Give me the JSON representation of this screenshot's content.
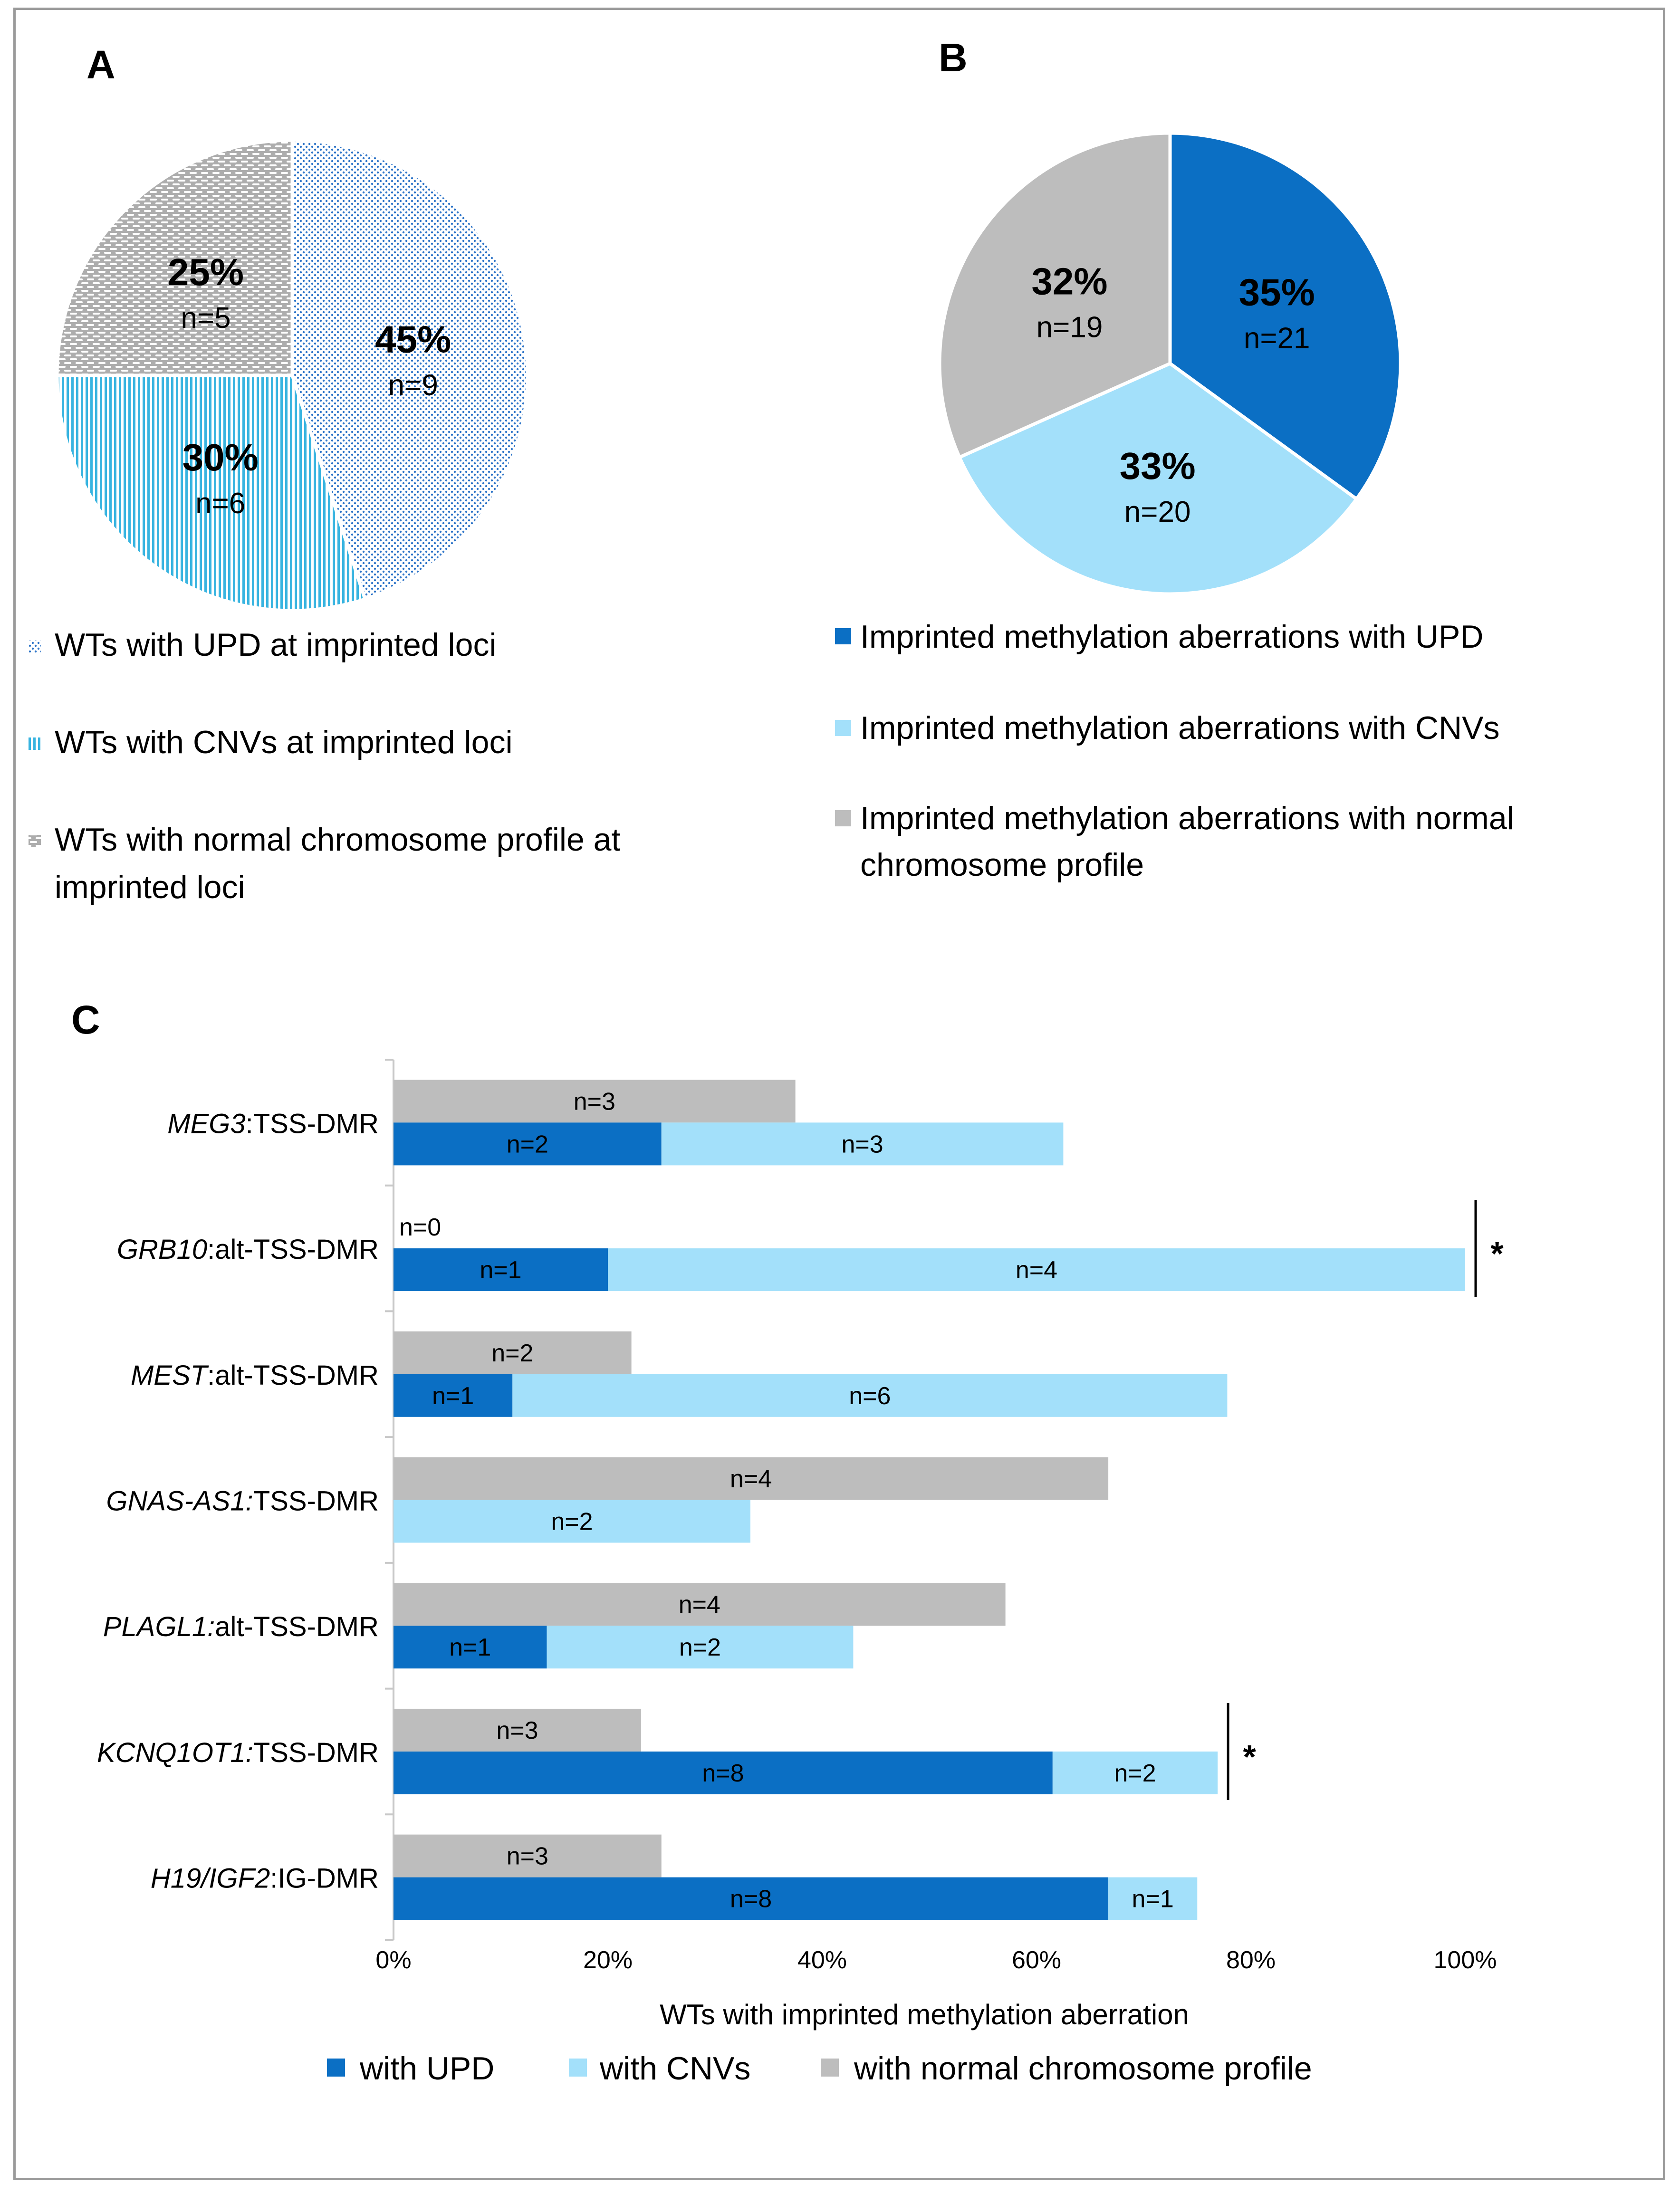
{
  "panels": {
    "a": "A",
    "b": "B",
    "c": "C"
  },
  "colors": {
    "upd": "#0B6FC4",
    "cnv": "#A3E0FA",
    "normal": "#BDBDBD",
    "pattern_upd": "#2B73C8",
    "pattern_cnv": "#38B4E0",
    "pattern_normal": "#ADADAD"
  },
  "chart_data": [
    {
      "type": "pie",
      "panel": "A",
      "slices": [
        {
          "label": "WTs with UPD at imprinted loci",
          "percent_label": "45%",
          "n_label": "n=9",
          "value": 9
        },
        {
          "label": "WTs with CNVs at imprinted loci",
          "percent_label": "30%",
          "n_label": "n=6",
          "value": 6
        },
        {
          "label": "WTs with normal chromosome profile at imprinted loci",
          "percent_label": "25%",
          "n_label": "n=5",
          "value": 5
        }
      ],
      "legend": [
        "WTs with UPD at imprinted loci",
        "WTs with CNVs at imprinted loci",
        "WTs with normal chromosome profile at",
        "imprinted loci"
      ],
      "legend_position": "bottom"
    },
    {
      "type": "pie",
      "panel": "B",
      "slices": [
        {
          "label": "Imprinted methylation aberrations with UPD",
          "percent_label": "35%",
          "n_label": "n=21",
          "value": 21
        },
        {
          "label": "Imprinted methylation aberrations with CNVs",
          "percent_label": "33%",
          "n_label": "n=20",
          "value": 20
        },
        {
          "label": "Imprinted methylation aberrations with normal chromosome profile",
          "percent_label": "32%",
          "n_label": "n=19",
          "value": 19
        }
      ],
      "legend": [
        "Imprinted methylation aberrations with UPD",
        "Imprinted methylation aberrations with CNVs",
        "Imprinted methylation aberrations with normal",
        "chromosome profile"
      ],
      "legend_position": "bottom"
    },
    {
      "type": "bar",
      "orientation": "horizontal",
      "panel": "C",
      "xlabel": "WTs with imprinted methylation aberration",
      "xlim": [
        0,
        100
      ],
      "ticks": [
        "0%",
        "20%",
        "40%",
        "60%",
        "80%",
        "100%"
      ],
      "legend": [
        "with UPD",
        "with CNVs",
        "with normal chromosome profile"
      ],
      "legend_position": "bottom",
      "categories": [
        {
          "gene": "MEG3",
          "suffix": ":TSS-DMR",
          "stacked": [
            {
              "s": "upd",
              "v": 25,
              "label": "n=2"
            },
            {
              "s": "cnv",
              "v": 37.5,
              "label": "n=3"
            }
          ],
          "normal": {
            "v": 37.5,
            "label": "n=3"
          },
          "sig": ""
        },
        {
          "gene": "GRB10",
          "suffix": ":alt-TSS-DMR",
          "stacked": [
            {
              "s": "upd",
              "v": 20,
              "label": "n=1"
            },
            {
              "s": "cnv",
              "v": 80,
              "label": "n=4"
            }
          ],
          "normal": {
            "v": 0,
            "label": "n=0"
          },
          "sig": "*"
        },
        {
          "gene": "MEST",
          "suffix": ":alt-TSS-DMR",
          "stacked": [
            {
              "s": "upd",
              "v": 11.1,
              "label": "n=1"
            },
            {
              "s": "cnv",
              "v": 66.7,
              "label": "n=6"
            }
          ],
          "normal": {
            "v": 22.2,
            "label": "n=2"
          },
          "sig": ""
        },
        {
          "gene": "GNAS-AS1:",
          "suffix": "TSS-DMR",
          "stacked": [
            {
              "s": "cnv",
              "v": 33.3,
              "label": "n=2"
            }
          ],
          "normal": {
            "v": 66.7,
            "label": "n=4"
          },
          "sig": ""
        },
        {
          "gene": "PLAGL1:",
          "suffix": "alt-TSS-DMR",
          "stacked": [
            {
              "s": "upd",
              "v": 14.3,
              "label": "n=1"
            },
            {
              "s": "cnv",
              "v": 28.6,
              "label": "n=2"
            }
          ],
          "normal": {
            "v": 57.1,
            "label": "n=4"
          },
          "sig": ""
        },
        {
          "gene": "KCNQ1OT1:",
          "suffix": "TSS-DMR",
          "stacked": [
            {
              "s": "upd",
              "v": 61.5,
              "label": "n=8"
            },
            {
              "s": "cnv",
              "v": 15.4,
              "label": "n=2"
            }
          ],
          "normal": {
            "v": 23.1,
            "label": "n=3"
          },
          "sig": "*"
        },
        {
          "gene": "H19/IGF2",
          "suffix": ":IG-DMR",
          "stacked": [
            {
              "s": "upd",
              "v": 66.7,
              "label": "n=8"
            },
            {
              "s": "cnv",
              "v": 8.3,
              "label": "n=1"
            }
          ],
          "normal": {
            "v": 25,
            "label": "n=3"
          },
          "sig": ""
        }
      ]
    }
  ]
}
